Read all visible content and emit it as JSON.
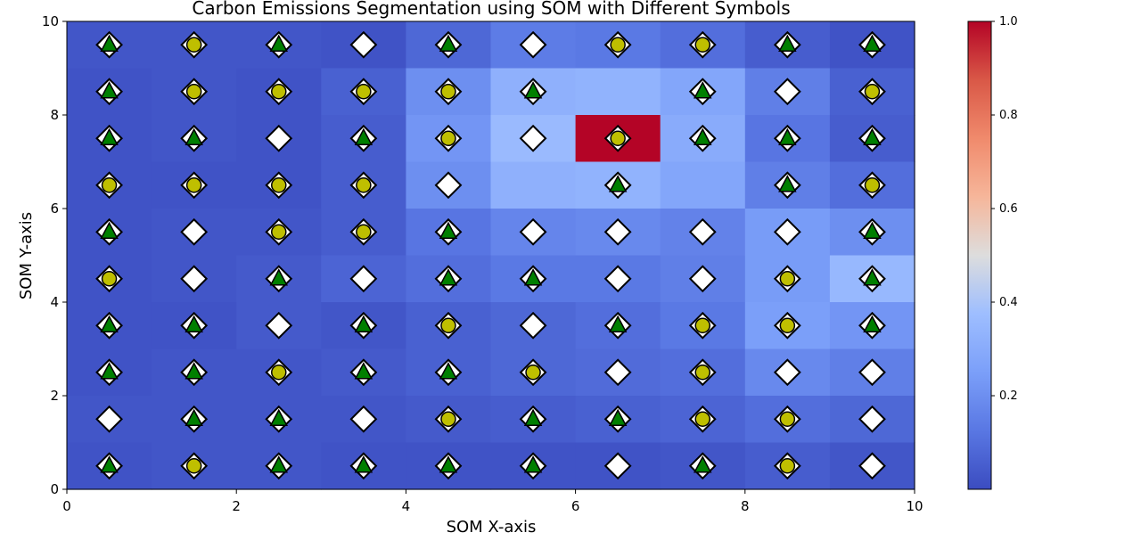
{
  "chart_data": {
    "type": "heatmap",
    "title": "Carbon Emissions Segmentation using SOM with Different Symbols",
    "xlabel": "SOM X-axis",
    "ylabel": "SOM Y-axis",
    "xlim": [
      0,
      10
    ],
    "ylim": [
      0,
      10
    ],
    "x_ticks": [
      "0",
      "2",
      "4",
      "6",
      "8",
      "10"
    ],
    "y_ticks": [
      "0",
      "2",
      "4",
      "6",
      "8",
      "10"
    ],
    "colorbar": {
      "colormap": "coolwarm",
      "range": [
        0,
        1
      ],
      "tick_values": [
        0.2,
        0.4,
        0.6,
        0.8,
        1.0
      ],
      "ticks": [
        "0.2",
        "0.4",
        "0.6",
        "0.8",
        "1.0"
      ]
    },
    "grid_values_top_to_bottom": [
      [
        0.03,
        0.03,
        0.03,
        0.02,
        0.08,
        0.14,
        0.13,
        0.1,
        0.05,
        0.02
      ],
      [
        0.02,
        0.03,
        0.02,
        0.06,
        0.2,
        0.32,
        0.33,
        0.28,
        0.15,
        0.06
      ],
      [
        0.02,
        0.03,
        0.02,
        0.05,
        0.22,
        0.36,
        1.0,
        0.3,
        0.12,
        0.05
      ],
      [
        0.02,
        0.02,
        0.02,
        0.05,
        0.2,
        0.32,
        0.33,
        0.28,
        0.15,
        0.1
      ],
      [
        0.02,
        0.03,
        0.03,
        0.05,
        0.12,
        0.17,
        0.18,
        0.16,
        0.24,
        0.2
      ],
      [
        0.02,
        0.03,
        0.04,
        0.07,
        0.1,
        0.13,
        0.13,
        0.15,
        0.24,
        0.35
      ],
      [
        0.02,
        0.02,
        0.04,
        0.03,
        0.06,
        0.08,
        0.1,
        0.13,
        0.25,
        0.22
      ],
      [
        0.02,
        0.03,
        0.03,
        0.04,
        0.06,
        0.08,
        0.09,
        0.1,
        0.18,
        0.15
      ],
      [
        0.03,
        0.03,
        0.03,
        0.03,
        0.04,
        0.05,
        0.06,
        0.07,
        0.1,
        0.08
      ],
      [
        0.02,
        0.03,
        0.03,
        0.02,
        0.02,
        0.02,
        0.02,
        0.03,
        0.05,
        0.03
      ]
    ],
    "marker_types": [
      "diamond",
      "circle",
      "triangle"
    ],
    "markers_top_to_bottom": [
      [
        "T",
        "C",
        "T",
        "D",
        "T",
        "D",
        "C",
        "C",
        "T",
        "T"
      ],
      [
        "T",
        "C",
        "C",
        "C",
        "C",
        "T",
        "",
        "T",
        "D",
        "C"
      ],
      [
        "T",
        "T",
        "D",
        "T",
        "C",
        "D",
        "C",
        "T",
        "T",
        "T"
      ],
      [
        "C",
        "C",
        "C",
        "C",
        "D",
        "",
        "T",
        "",
        "T",
        "C"
      ],
      [
        "T",
        "D",
        "C",
        "C",
        "T",
        "D",
        "D",
        "D",
        "D",
        "T"
      ],
      [
        "C",
        "D",
        "T",
        "D",
        "T",
        "T",
        "D",
        "D",
        "C",
        "T"
      ],
      [
        "T",
        "T",
        "D",
        "T",
        "C",
        "D",
        "T",
        "C",
        "C",
        "T"
      ],
      [
        "T",
        "T",
        "C",
        "T",
        "T",
        "C",
        "D",
        "C",
        "D",
        "D"
      ],
      [
        "D",
        "T",
        "T",
        "D",
        "C",
        "T",
        "T",
        "C",
        "C",
        "D"
      ],
      [
        "T",
        "C",
        "T",
        "T",
        "T",
        "T",
        "D",
        "T",
        "C",
        "D"
      ]
    ],
    "marker_colors": {
      "diamond_fill": "#ffffff",
      "circle_fill": "#bfbf00",
      "triangle_fill": "#007f00",
      "outline": "#000000"
    }
  }
}
